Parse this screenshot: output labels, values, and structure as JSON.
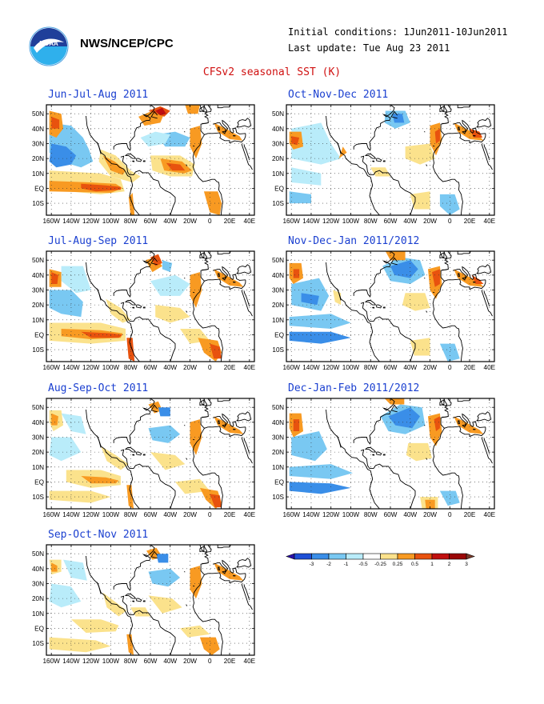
{
  "header": {
    "agency": "NWS/NCEP/CPC",
    "initial_conditions": "Initial conditions: 1Jun2011-10Jun2011",
    "last_update": "Last update: Tue Aug 23 2011",
    "title": "CFSv2 seasonal SST (K)",
    "logo_label": "NOAA"
  },
  "axes": {
    "x_ticks": [
      "160W",
      "140W",
      "120W",
      "100W",
      "80W",
      "60W",
      "40W",
      "20W",
      "0",
      "20E",
      "40E"
    ],
    "y_ticks": [
      "50N",
      "40N",
      "30N",
      "20N",
      "10N",
      "EQ",
      "10S"
    ]
  },
  "panels": [
    {
      "id": "jja",
      "title": "Jun-Jul-Aug 2011"
    },
    {
      "id": "ond",
      "title": "Oct-Nov-Dec 2011"
    },
    {
      "id": "jas",
      "title": "Jul-Aug-Sep 2011"
    },
    {
      "id": "ndj",
      "title": "Nov-Dec-Jan 2011/2012"
    },
    {
      "id": "aso",
      "title": "Aug-Sep-Oct 2011"
    },
    {
      "id": "djf",
      "title": "Dec-Jan-Feb 2011/2012"
    },
    {
      "id": "son",
      "title": "Sep-Oct-Nov 2011"
    }
  ],
  "legend": {
    "labels": [
      "-3",
      "-2",
      "-1",
      "-0.5",
      "-0.25",
      "0.25",
      "0.5",
      "1",
      "2",
      "3"
    ],
    "colors": [
      "#2b10a8",
      "#1e4fd6",
      "#3a8ee8",
      "#79c8f2",
      "#b9ecfa",
      "#ffffff",
      "#fbe28c",
      "#f89a22",
      "#e8520e",
      "#c00f0f",
      "#9a0707",
      "#7a3a2a"
    ]
  }
}
